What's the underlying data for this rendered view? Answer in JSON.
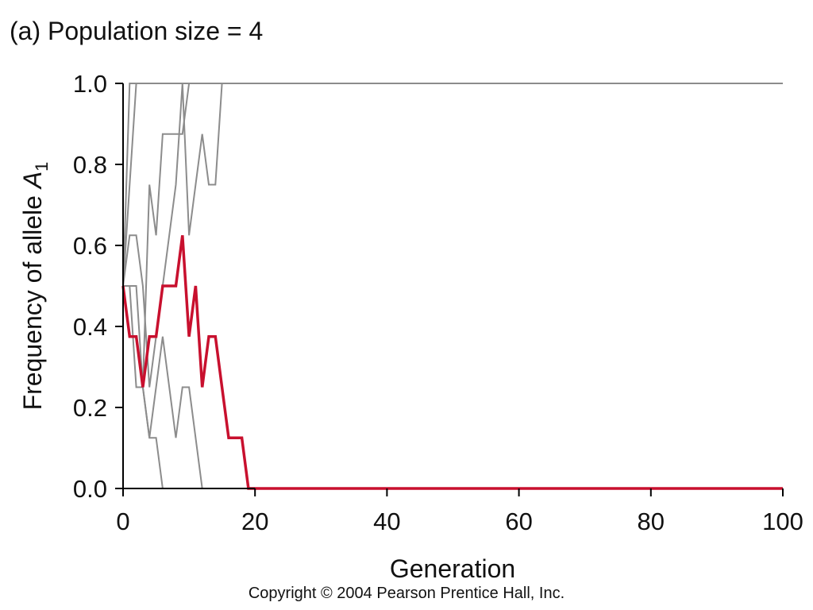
{
  "chart_data": {
    "type": "line",
    "title": "(a) Population size = 4",
    "xlabel": "Generation",
    "ylabel": "Frequency of allele",
    "ylabel_symbol": "A",
    "ylabel_subscript": "1",
    "xlim": [
      0,
      100
    ],
    "ylim": [
      0,
      1
    ],
    "x_ticks": [
      "0",
      "20",
      "40",
      "60",
      "80",
      "100"
    ],
    "y_ticks": [
      "0.0",
      "0.2",
      "0.4",
      "0.6",
      "0.8",
      "1.0"
    ],
    "grid": false,
    "colors": {
      "highlight": "#c8102e",
      "background_series": "#8c8c8c",
      "axis": "#000000"
    },
    "series": [
      {
        "highlight": false,
        "x": [
          0,
          1,
          100
        ],
        "y": [
          0.5,
          1.0,
          1.0
        ]
      },
      {
        "highlight": false,
        "x": [
          0,
          2,
          100
        ],
        "y": [
          0.5,
          1.0,
          1.0
        ]
      },
      {
        "highlight": false,
        "x": [
          0,
          1,
          2,
          3,
          4,
          5,
          6,
          7,
          8,
          9,
          10,
          11,
          12,
          13,
          14,
          15,
          100
        ],
        "y": [
          0.5,
          0.625,
          0.625,
          0.5,
          0.25,
          0.375,
          0.5,
          0.625,
          0.75,
          1.0,
          0.625,
          0.75,
          0.875,
          0.75,
          0.75,
          1.0,
          1.0
        ]
      },
      {
        "highlight": false,
        "x": [
          0,
          1,
          2,
          3,
          4,
          5,
          6,
          7,
          8,
          9,
          10,
          100
        ],
        "y": [
          0.5,
          0.5,
          0.25,
          0.25,
          0.75,
          0.625,
          0.875,
          0.875,
          0.875,
          0.875,
          1.0,
          1.0
        ]
      },
      {
        "highlight": false,
        "x": [
          0,
          1,
          2,
          3,
          4,
          5,
          6,
          100
        ],
        "y": [
          0.5,
          0.5,
          0.5,
          0.25,
          0.125,
          0.125,
          0.0,
          0.0
        ]
      },
      {
        "highlight": false,
        "x": [
          0,
          1,
          2,
          3,
          4,
          5,
          6,
          7,
          8,
          9,
          10,
          11,
          12,
          100
        ],
        "y": [
          0.5,
          0.375,
          0.375,
          0.25,
          0.125,
          0.25,
          0.375,
          0.25,
          0.125,
          0.25,
          0.25,
          0.125,
          0.0,
          0.0
        ]
      },
      {
        "highlight": true,
        "x": [
          0,
          1,
          2,
          3,
          4,
          5,
          6,
          7,
          8,
          9,
          10,
          11,
          12,
          13,
          14,
          15,
          16,
          17,
          18,
          19,
          100
        ],
        "y": [
          0.5,
          0.375,
          0.375,
          0.25,
          0.375,
          0.375,
          0.5,
          0.5,
          0.5,
          0.625,
          0.375,
          0.5,
          0.25,
          0.375,
          0.375,
          0.25,
          0.125,
          0.125,
          0.125,
          0.0,
          0.0
        ]
      }
    ]
  },
  "copyright": "Copyright © 2004 Pearson Prentice Hall, Inc."
}
